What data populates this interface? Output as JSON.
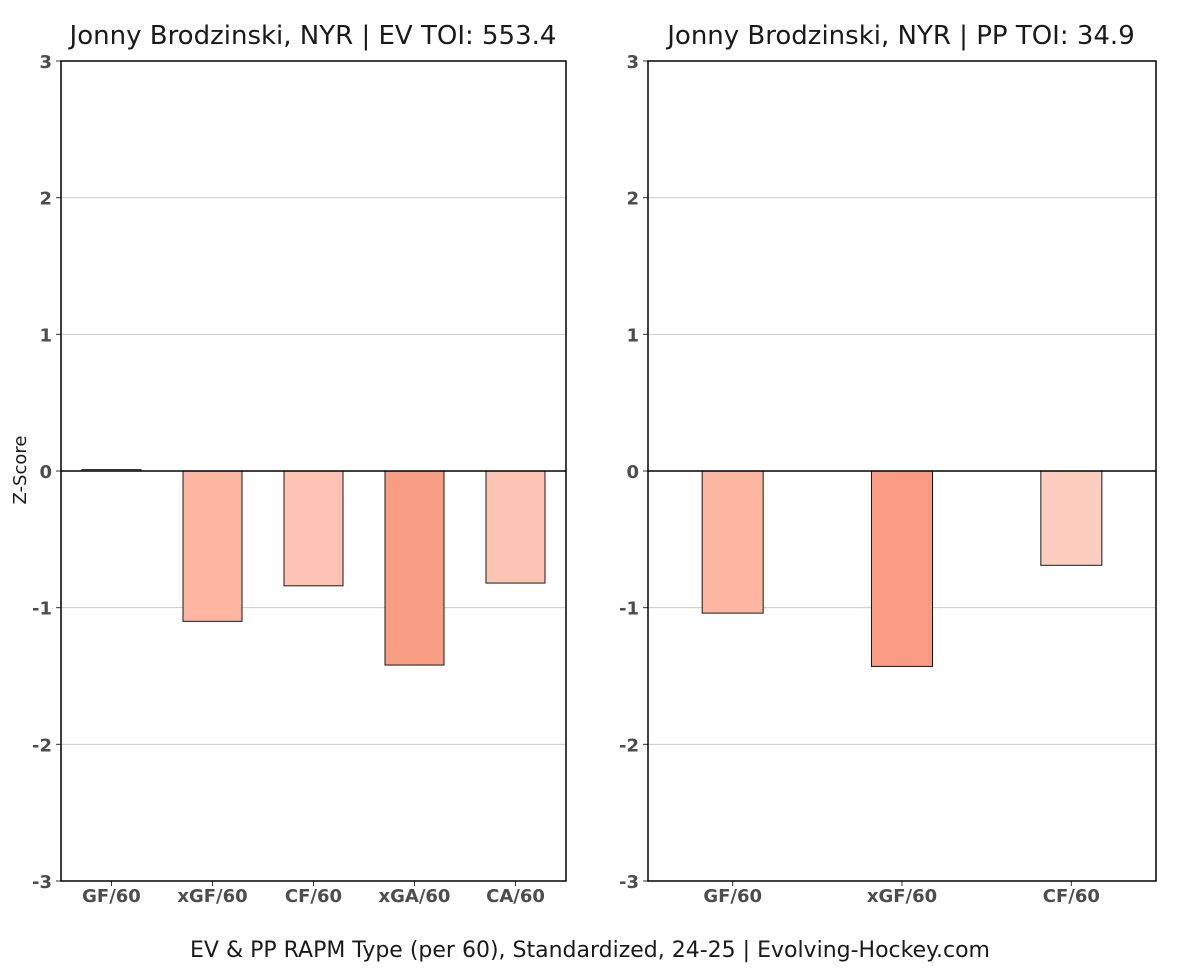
{
  "caption": "EV & PP RAPM Type (per 60), Standardized, 24-25    |    Evolving-Hockey.com",
  "chart_data": [
    {
      "type": "bar",
      "title": "Jonny Brodzinski, NYR  |  EV TOI: 553.4",
      "xlabel": "",
      "ylabel": "Z-Score",
      "ylim": [
        -3,
        3
      ],
      "yticks": [
        3,
        2,
        1,
        0,
        -1,
        -2,
        -3
      ],
      "grid": true,
      "categories": [
        "GF/60",
        "xGF/60",
        "CF/60",
        "xGA/60",
        "CA/60"
      ],
      "values": [
        0.01,
        -1.1,
        -0.84,
        -1.42,
        -0.82
      ],
      "colors": [
        "#fee0d2",
        "#fcb5a0",
        "#fdc2b2",
        "#f89e84",
        "#fdc3b3"
      ]
    },
    {
      "type": "bar",
      "title": "Jonny Brodzinski, NYR  |  PP TOI: 34.9",
      "xlabel": "",
      "ylabel": "",
      "ylim": [
        -3,
        3
      ],
      "yticks": [
        3,
        2,
        1,
        0,
        -1,
        -2,
        -3
      ],
      "grid": true,
      "categories": [
        "GF/60",
        "xGF/60",
        "CF/60"
      ],
      "values": [
        -1.04,
        -1.43,
        -0.69
      ],
      "colors": [
        "#fcb5a0",
        "#f89b82",
        "#fdcdbf"
      ]
    }
  ]
}
